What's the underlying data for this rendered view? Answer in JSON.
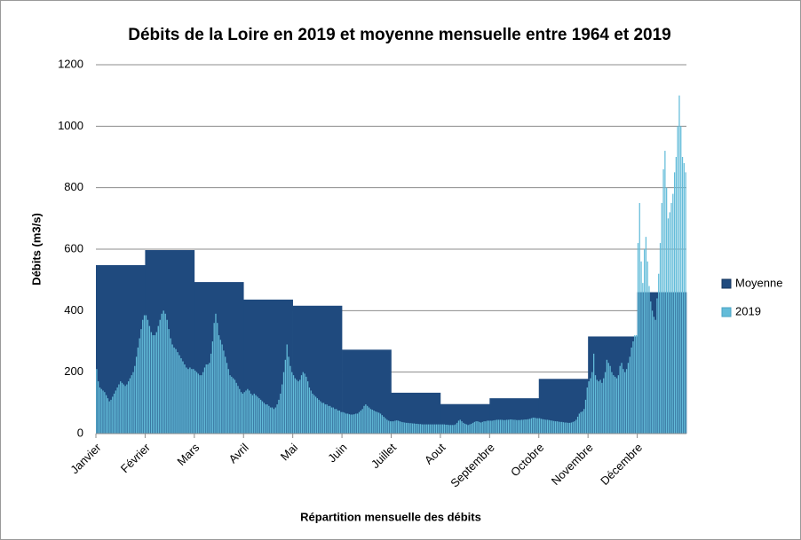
{
  "chart_data": {
    "type": "bar",
    "title": "Débits de la Loire en 2019 et moyenne mensuelle entre 1964 et 2019",
    "x_label": "Répartition mensuelle des débits",
    "y_label": "Débits (m3/s)",
    "categories": [
      "Janvier",
      "Février",
      "Mars",
      "Avril",
      "Mai",
      "Juin",
      "Juillet",
      "Aout",
      "Septembre",
      "Octobre",
      "Novembre",
      "Décembre"
    ],
    "ylim": [
      0,
      1200
    ],
    "yticks": [
      0,
      200,
      400,
      600,
      800,
      1000,
      1200
    ],
    "grid": true,
    "legend": "right",
    "series": [
      {
        "name": "Moyenne",
        "color": "#1f4a7e",
        "values": [
          548,
          597,
          493,
          436,
          416,
          273,
          133,
          96,
          115,
          178,
          316,
          460
        ]
      },
      {
        "name": "2019",
        "color": "#63bcd9",
        "values": [
          [
            210,
            170,
            150,
            145,
            140,
            135,
            125,
            115,
            105,
            110,
            120,
            130,
            140,
            150,
            160,
            170,
            165,
            160,
            155,
            160,
            170,
            180,
            190,
            200,
            220,
            250,
            280,
            310,
            340,
            370,
            385
          ],
          [
            385,
            370,
            350,
            330,
            320,
            320,
            330,
            350,
            370,
            390,
            400,
            390,
            370,
            340,
            310,
            290,
            280,
            275,
            265,
            255,
            245,
            235,
            225,
            215,
            210,
            215,
            210,
            210
          ],
          [
            205,
            200,
            195,
            190,
            190,
            200,
            215,
            225,
            225,
            230,
            260,
            300,
            360,
            390,
            360,
            320,
            305,
            290,
            270,
            250,
            230,
            210,
            190,
            185,
            180,
            175,
            165,
            155,
            145,
            135,
            130
          ],
          [
            135,
            140,
            145,
            140,
            130,
            125,
            130,
            125,
            120,
            115,
            110,
            105,
            100,
            95,
            95,
            90,
            85,
            85,
            80,
            85,
            95,
            110,
            130,
            160,
            200,
            240,
            290,
            250,
            220,
            200
          ],
          [
            190,
            180,
            175,
            170,
            175,
            190,
            200,
            195,
            185,
            170,
            150,
            140,
            130,
            125,
            120,
            115,
            110,
            105,
            100,
            100,
            95,
            95,
            90,
            90,
            85,
            85,
            80,
            80,
            75,
            75,
            70
          ],
          [
            70,
            68,
            65,
            65,
            63,
            62,
            62,
            63,
            65,
            65,
            70,
            75,
            80,
            90,
            95,
            90,
            85,
            80,
            78,
            75,
            72,
            70,
            68,
            65,
            60,
            55,
            50,
            45,
            42,
            40
          ],
          [
            40,
            40,
            42,
            43,
            42,
            40,
            38,
            37,
            36,
            35,
            35,
            34,
            34,
            33,
            33,
            32,
            32,
            31,
            31,
            30,
            30,
            30,
            30,
            30,
            30,
            30,
            30,
            30,
            30,
            30,
            30
          ],
          [
            30,
            30,
            30,
            29,
            29,
            28,
            28,
            28,
            28,
            30,
            35,
            42,
            45,
            40,
            35,
            32,
            30,
            28,
            30,
            32,
            35,
            38,
            40,
            40,
            38,
            36,
            38,
            40,
            40,
            42,
            42
          ],
          [
            42,
            42,
            43,
            44,
            45,
            45,
            45,
            45,
            44,
            44,
            45,
            45,
            46,
            46,
            45,
            45,
            44,
            44,
            44,
            45,
            45,
            46,
            46,
            47,
            48,
            50,
            52,
            52,
            50,
            50
          ],
          [
            50,
            48,
            47,
            46,
            45,
            45,
            44,
            43,
            42,
            41,
            40,
            40,
            39,
            38,
            38,
            37,
            36,
            36,
            35,
            35,
            36,
            38,
            40,
            45,
            55,
            65,
            70,
            72,
            80,
            110,
            150
          ],
          [
            170,
            180,
            200,
            260,
            190,
            175,
            170,
            175,
            165,
            180,
            200,
            240,
            230,
            220,
            200,
            190,
            185,
            180,
            190,
            220,
            230,
            210,
            200,
            210,
            230,
            250,
            280,
            300,
            320,
            320
          ],
          [
            620,
            750,
            560,
            490,
            600,
            640,
            560,
            480,
            430,
            400,
            380,
            370,
            440,
            520,
            620,
            750,
            860,
            920,
            800,
            700,
            720,
            750,
            780,
            850,
            900,
            1000,
            1100,
            1000,
            900,
            880,
            850
          ]
        ]
      }
    ]
  }
}
